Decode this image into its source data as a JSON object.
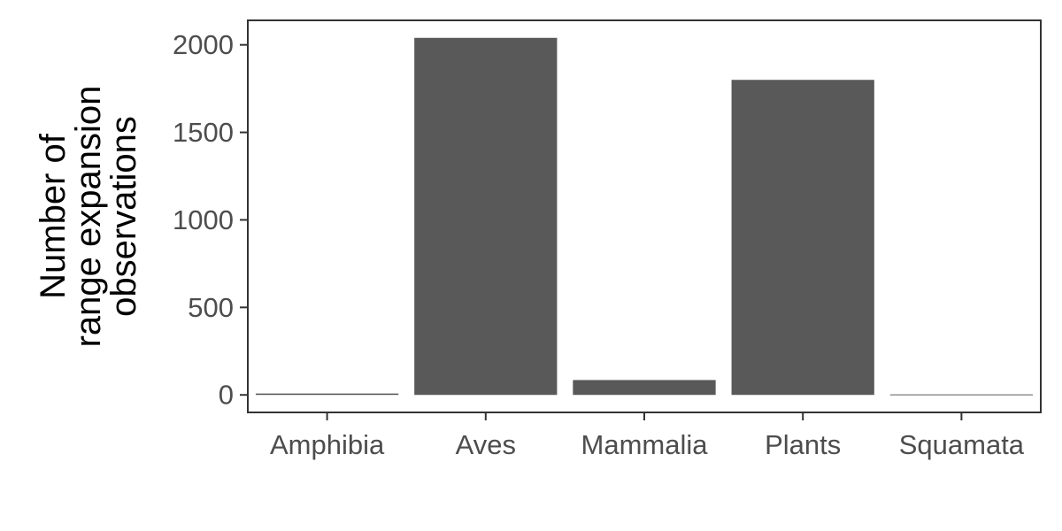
{
  "chart_data": {
    "type": "bar",
    "title": "",
    "xlabel": "",
    "ylabel_lines": [
      "Number of",
      "range expansion",
      "observations"
    ],
    "categories": [
      "Amphibia",
      "Aves",
      "Mammalia",
      "Plants",
      "Squamata"
    ],
    "values": [
      8,
      2040,
      85,
      1800,
      3
    ],
    "ylim": [
      -100,
      2140
    ],
    "yticks": [
      0,
      500,
      1000,
      1500,
      2000
    ],
    "ytick_labels": [
      "0",
      "500",
      "1000",
      "1500",
      "2000"
    ],
    "bar_color": "#595959",
    "grid": false,
    "legend": "none"
  }
}
